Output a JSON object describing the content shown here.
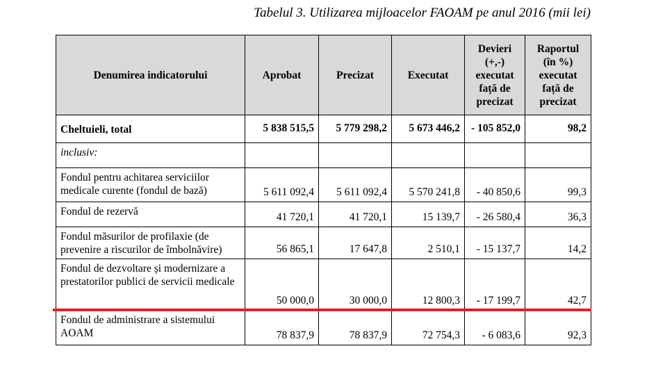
{
  "caption": "Tabelul 3. Utilizarea mijloacelor FAOAM pe anul 2016 (mii lei)",
  "table": {
    "header": [
      "Denumirea indicatorului",
      "Aprobat",
      "Precizat",
      "Executat",
      "Devieri (+,-) executat față de precizat",
      "Raportul (în %) executat față de precizat"
    ],
    "rows": [
      {
        "label": "Cheltuieli, total",
        "values": [
          "5 838 515,5",
          "5 779 298,2",
          "5 673 446,2",
          "- 105 852,0",
          "98,2"
        ]
      },
      {
        "label": "inclusiv:"
      },
      {
        "label": "Fondul pentru achitarea serviciilor medicale curente (fondul de bază)",
        "values": [
          "5 611 092,4",
          "5 611 092,4",
          "5 570 241,8",
          "- 40 850,6",
          "99,3"
        ]
      },
      {
        "label": "Fondul de rezervă",
        "values": [
          "41 720,1",
          "41 720,1",
          "15 139,7",
          "- 26 580,4",
          "36,3"
        ]
      },
      {
        "label": "Fondul măsurilor de profilaxie (de prevenire a riscurilor de îmbolnăvire)",
        "values": [
          "56 865,1",
          "17 647,8",
          "2 510,1",
          "- 15 137,7",
          "14,2"
        ]
      },
      {
        "label": "Fondul de dezvoltare și modernizare a prestatorilor publici de servicii medicale",
        "values": [
          "50 000,0",
          "30 000,0",
          "12 800,3",
          "- 17 199,7",
          "42,7"
        ]
      },
      {
        "label": "Fondul de administrare a sistemului AOAM",
        "values": [
          "78 837,9",
          "78 837,9",
          "72 754,3",
          "- 6 083,6",
          "92,3"
        ]
      }
    ]
  }
}
